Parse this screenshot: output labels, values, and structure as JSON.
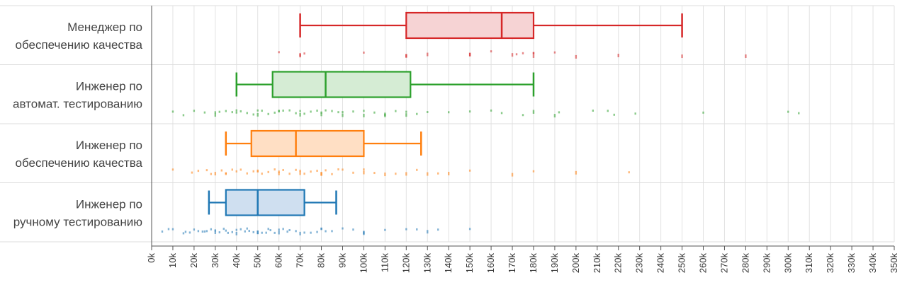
{
  "chart_data": {
    "type": "box",
    "orientation": "horizontal",
    "title": "",
    "xlabel": "",
    "ylabel": "",
    "xlim": [
      0,
      350000
    ],
    "x_ticks": [
      0,
      10000,
      20000,
      30000,
      40000,
      50000,
      60000,
      70000,
      80000,
      90000,
      100000,
      110000,
      120000,
      130000,
      140000,
      150000,
      160000,
      170000,
      180000,
      190000,
      200000,
      210000,
      220000,
      230000,
      240000,
      250000,
      260000,
      270000,
      280000,
      290000,
      300000,
      310000,
      320000,
      330000,
      340000,
      350000
    ],
    "x_tick_labels": [
      "0k",
      "10k",
      "20k",
      "30k",
      "40k",
      "50k",
      "60k",
      "70k",
      "80k",
      "90k",
      "100k",
      "110k",
      "120k",
      "130k",
      "140k",
      "150k",
      "160k",
      "170k",
      "180k",
      "190k",
      "200k",
      "210k",
      "220k",
      "230k",
      "240k",
      "250k",
      "260k",
      "270k",
      "280k",
      "290k",
      "300k",
      "310k",
      "320k",
      "330k",
      "340k",
      "350k"
    ],
    "grid": true,
    "series": [
      {
        "label_lines": [
          "Менеджер по",
          "обеспечению качества"
        ],
        "color": "#d62728",
        "fill": "#f6d3d4",
        "whisker_low": 70000,
        "q1": 120000,
        "median": 165000,
        "q3": 180000,
        "whisker_high": 250000,
        "points": [
          60000,
          70000,
          70000,
          72000,
          100000,
          120000,
          120000,
          130000,
          150000,
          150000,
          160000,
          170000,
          172000,
          175000,
          180000,
          180000,
          180000,
          190000,
          200000,
          220000,
          250000,
          280000
        ]
      },
      {
        "label_lines": [
          "Инженер по",
          "автомат. тестированию"
        ],
        "color": "#2ca02c",
        "fill": "#d5ecd4",
        "whisker_low": 40000,
        "q1": 57000,
        "median": 82000,
        "q3": 122000,
        "whisker_high": 180000,
        "points": [
          10000,
          15000,
          20000,
          25000,
          30000,
          30000,
          32000,
          35000,
          38000,
          40000,
          40000,
          42000,
          45000,
          48000,
          50000,
          50000,
          52000,
          55000,
          58000,
          60000,
          60000,
          62000,
          65000,
          68000,
          70000,
          70000,
          72000,
          75000,
          78000,
          80000,
          80000,
          82000,
          85000,
          88000,
          90000,
          90000,
          95000,
          100000,
          100000,
          105000,
          110000,
          110000,
          115000,
          120000,
          120000,
          125000,
          130000,
          140000,
          150000,
          160000,
          165000,
          175000,
          180000,
          180000,
          190000,
          192000,
          208000,
          215000,
          218000,
          228000,
          260000,
          300000,
          305000
        ]
      },
      {
        "label_lines": [
          "Инженер по",
          "обеспечению качества"
        ],
        "color": "#ff7f0e",
        "fill": "#ffdfc4",
        "whisker_low": 35000,
        "q1": 47000,
        "median": 68000,
        "q3": 100000,
        "whisker_high": 127000,
        "points": [
          10000,
          19000,
          22000,
          26000,
          28000,
          30000,
          33000,
          35000,
          35000,
          38000,
          40000,
          42000,
          45000,
          48000,
          50000,
          50000,
          52000,
          55000,
          58000,
          60000,
          60000,
          62000,
          65000,
          68000,
          70000,
          70000,
          72000,
          75000,
          78000,
          80000,
          80000,
          82000,
          85000,
          88000,
          90000,
          95000,
          100000,
          100000,
          105000,
          110000,
          115000,
          120000,
          125000,
          130000,
          135000,
          140000,
          150000,
          170000,
          180000,
          200000,
          225000
        ]
      },
      {
        "label_lines": [
          "Инженер по",
          "ручному тестированию"
        ],
        "color": "#1f77b4",
        "fill": "#cfdff0",
        "whisker_low": 27000,
        "q1": 35000,
        "median": 50000,
        "q3": 72000,
        "whisker_high": 87000,
        "points": [
          5000,
          8000,
          10000,
          15000,
          16000,
          18000,
          20000,
          22000,
          24000,
          25000,
          26000,
          28000,
          30000,
          30000,
          32000,
          34000,
          35000,
          36000,
          38000,
          40000,
          40000,
          42000,
          44000,
          45000,
          46000,
          48000,
          50000,
          50000,
          52000,
          54000,
          55000,
          56000,
          58000,
          60000,
          60000,
          62000,
          64000,
          65000,
          68000,
          70000,
          72000,
          75000,
          78000,
          80000,
          80000,
          82000,
          85000,
          90000,
          95000,
          100000,
          100000,
          110000,
          120000,
          125000,
          130000,
          135000,
          150000
        ]
      }
    ]
  }
}
